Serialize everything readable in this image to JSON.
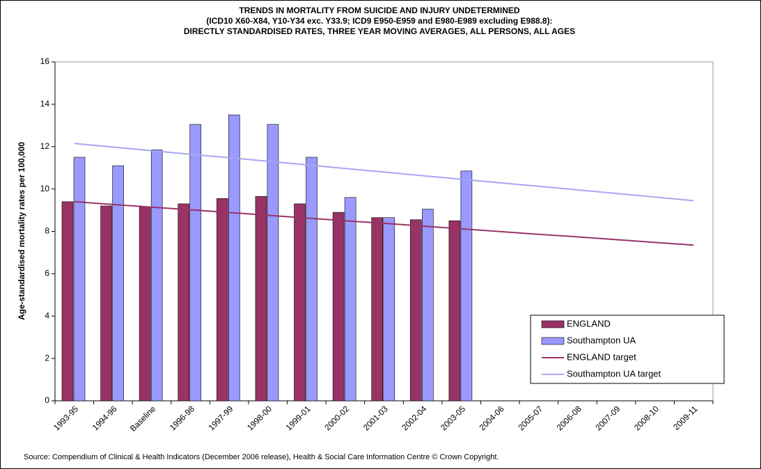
{
  "chart_data": {
    "type": "bar-line",
    "title": [
      "TRENDS IN MORTALITY FROM SUICIDE AND INJURY UNDETERMINED",
      "(ICD10 X60-X84, Y10-Y34 exc. Y33.9; ICD9 E950-E959 and E980-E989 excluding E988.8):",
      "DIRECTLY STANDARDISED RATES, THREE YEAR MOVING AVERAGES, ALL PERSONS, ALL AGES"
    ],
    "y_label": "Age-standardised mortality rates per 100,000",
    "source": "Source: Compendium of Clinical & Health Indicators (December 2006 release), Health & Social Care Information Centre © Crown Copyright.",
    "categories": [
      "1993-95",
      "1994-96",
      "Baseline",
      "1996-98",
      "1997-99",
      "1998-00",
      "1999-01",
      "2000-02",
      "2001-03",
      "2002-04",
      "2003-05",
      "2004-06",
      "2005-07",
      "2006-08",
      "2007-09",
      "2008-10",
      "2009-11"
    ],
    "series": [
      {
        "name": "ENGLAND",
        "kind": "bar",
        "color": "#993366",
        "values": [
          9.4,
          9.2,
          9.15,
          9.3,
          9.55,
          9.65,
          9.3,
          8.9,
          8.65,
          8.55,
          8.5,
          null,
          null,
          null,
          null,
          null,
          null
        ]
      },
      {
        "name": "Southampton UA",
        "kind": "bar",
        "color": "#9999ff",
        "values": [
          11.5,
          11.1,
          11.85,
          13.05,
          13.5,
          13.05,
          11.5,
          9.6,
          8.65,
          9.05,
          10.85,
          null,
          null,
          null,
          null,
          null,
          null
        ]
      },
      {
        "name": "ENGLAND target",
        "kind": "line",
        "color": "#993366",
        "values": [
          9.4,
          9.27,
          9.14,
          9.02,
          8.89,
          8.76,
          8.63,
          8.5,
          8.38,
          8.25,
          8.12,
          7.99,
          7.86,
          7.74,
          7.61,
          7.48,
          7.35
        ]
      },
      {
        "name": "Southampton UA target",
        "kind": "line",
        "color": "#a6a6f2",
        "values": [
          12.15,
          11.98,
          11.81,
          11.64,
          11.48,
          11.31,
          11.14,
          10.97,
          10.8,
          10.63,
          10.46,
          10.29,
          10.13,
          9.96,
          9.79,
          9.62,
          9.45
        ]
      }
    ],
    "ylim": [
      0,
      16
    ],
    "yticks": [
      0,
      2,
      4,
      6,
      8,
      10,
      12,
      14,
      16
    ],
    "grid": false,
    "legend": "lower-right"
  }
}
